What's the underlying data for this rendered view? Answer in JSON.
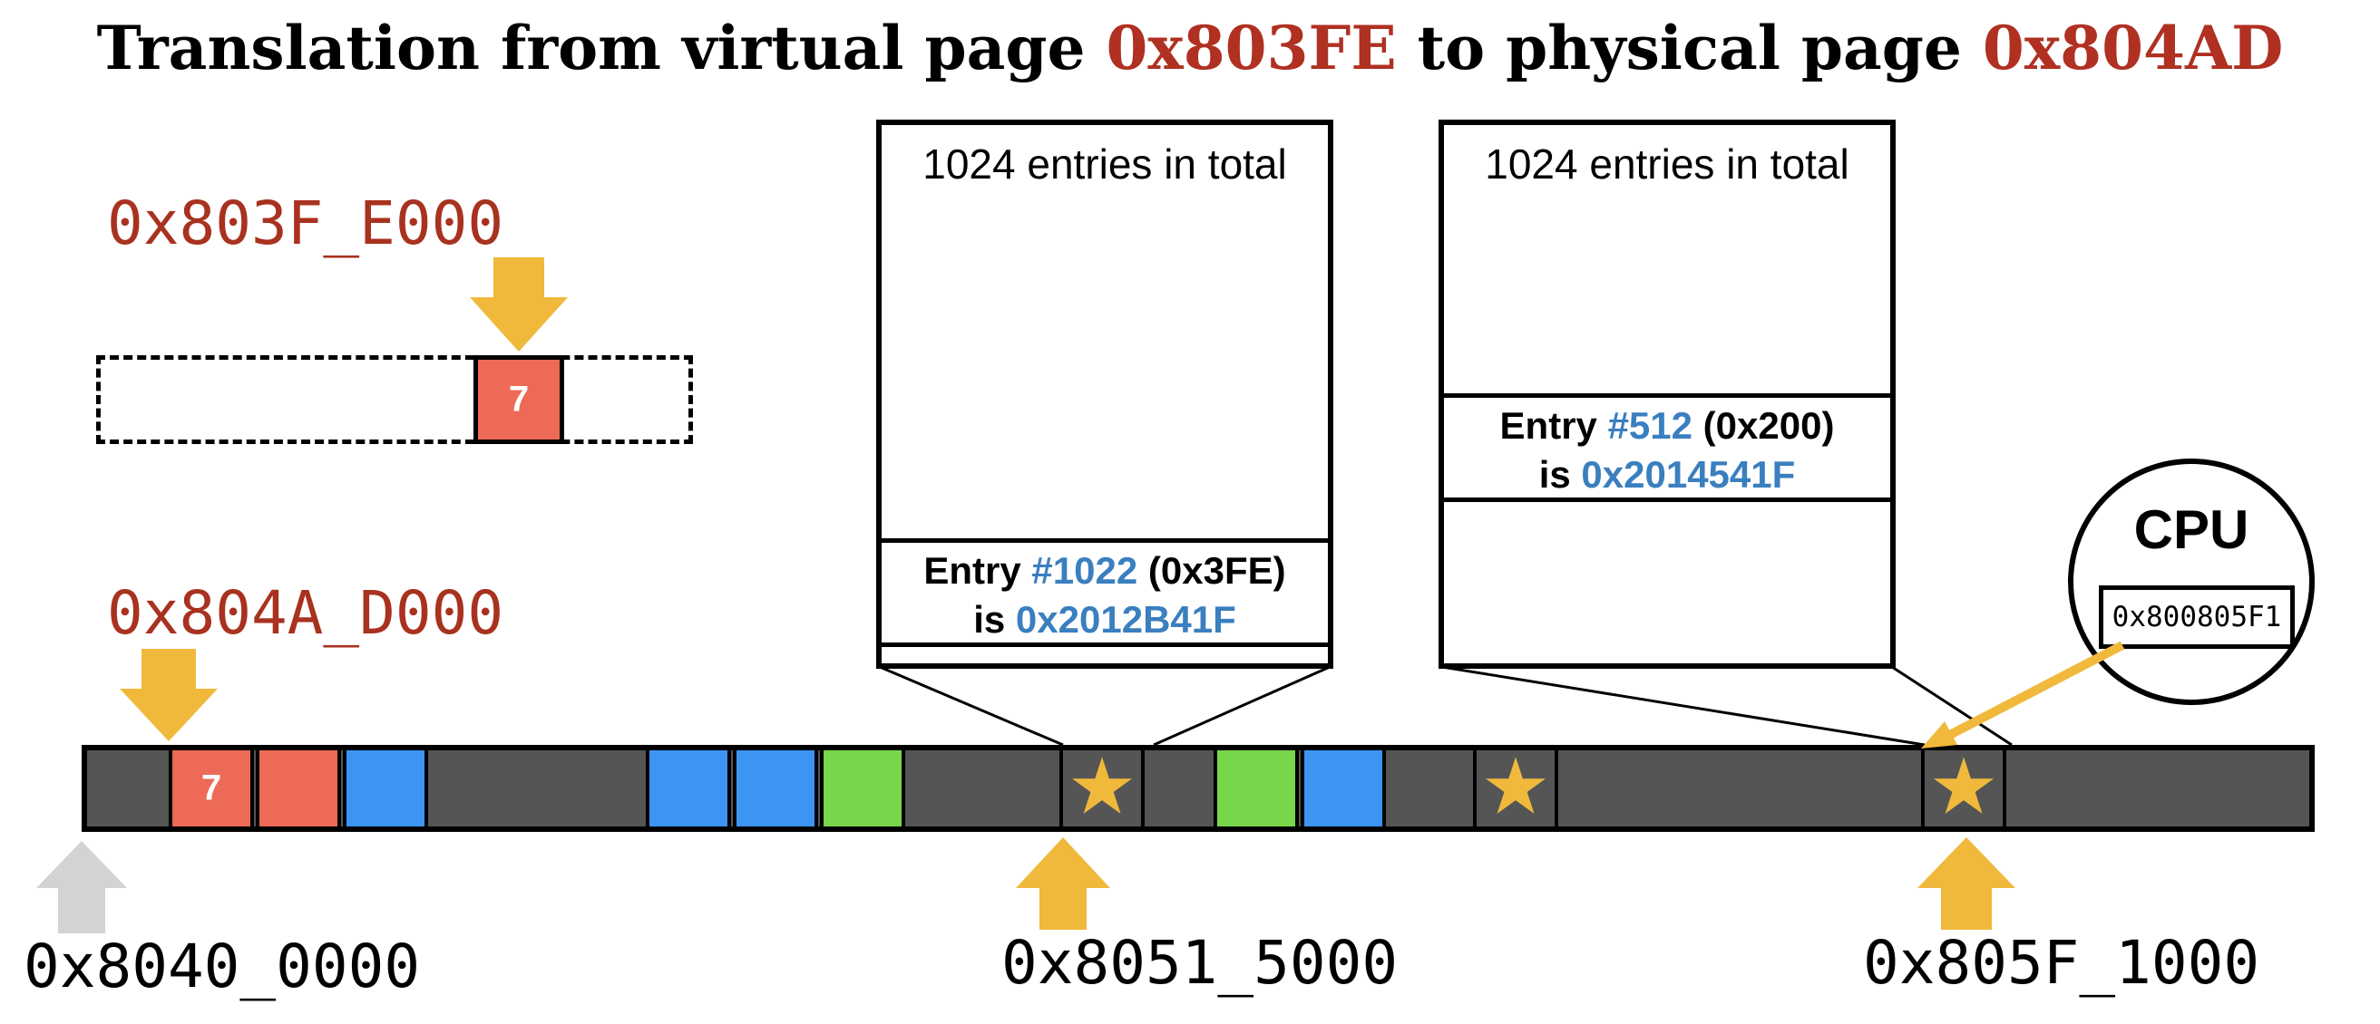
{
  "title": {
    "prefix": "Translation from virtual page ",
    "virtual_page": "0x803FE",
    "middle": " to physical page ",
    "physical_page": "0x804AD"
  },
  "colors": {
    "accent_red": "#b03022",
    "arrow_yellow": "#f0b93b",
    "arrow_gray": "#d3d3d3",
    "block_salmon": "#ec6a56",
    "block_blue": "#3d95f3",
    "block_green": "#78d64b",
    "memory_gray": "#555555",
    "link_blue": "#3a7fbf"
  },
  "virtual_addr": "0x803F_E000",
  "virtual_block_label": "7",
  "physical_addr": "0x804A_D000",
  "memory": {
    "base_addr": "0x8040_0000",
    "star_addr_1": "0x8051_5000",
    "star_addr_2": "0x805F_1000",
    "blocks": [
      {
        "kind": "salmon",
        "label": "7"
      },
      {
        "kind": "salmon",
        "label": ""
      },
      {
        "kind": "blue",
        "label": ""
      },
      {
        "kind": "blue",
        "label": ""
      },
      {
        "kind": "blue",
        "label": ""
      },
      {
        "kind": "green",
        "label": ""
      },
      {
        "kind": "star",
        "label": ""
      },
      {
        "kind": "green",
        "label": ""
      },
      {
        "kind": "blue",
        "label": ""
      },
      {
        "kind": "star",
        "label": ""
      },
      {
        "kind": "star",
        "label": ""
      }
    ]
  },
  "table_left": {
    "header": "1024 entries in total",
    "entry_prefix": "Entry ",
    "entry_index": "#1022",
    "entry_hex": " (0x3FE)",
    "is_word": "is ",
    "entry_value": "0x2012B41F"
  },
  "table_right": {
    "header": "1024 entries in total",
    "entry_prefix": "Entry ",
    "entry_index": "#512",
    "entry_hex": " (0x200)",
    "is_word": "is ",
    "entry_value": "0x2014541F"
  },
  "cpu": {
    "title": "CPU",
    "register": "0x800805F1"
  }
}
